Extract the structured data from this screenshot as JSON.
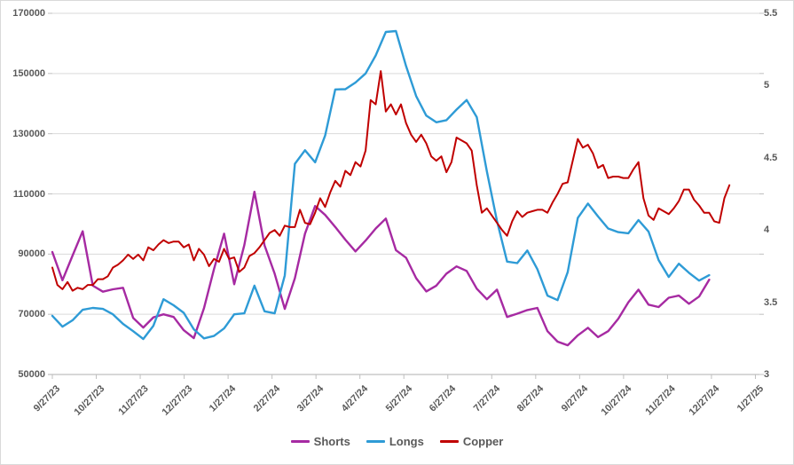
{
  "chart_data": {
    "type": "line",
    "title": "",
    "grid": "horizontal",
    "background_color": "#ffffff",
    "border_color": "#d9d9d9",
    "gridline_color": "#d9d9d9",
    "axis_line_color": "#bfbfbf",
    "tick_text_color": "#595959",
    "x_axis": {
      "tick_labels": [
        "9/27/23",
        "10/27/23",
        "11/27/23",
        "12/27/23",
        "1/27/24",
        "2/27/24",
        "3/27/24",
        "4/27/24",
        "5/27/24",
        "6/27/24",
        "7/27/24",
        "8/27/24",
        "9/27/24",
        "10/27/24",
        "11/27/24",
        "12/27/24",
        "1/27/25"
      ],
      "label_rotation_deg": -45,
      "point_interval": "weekly"
    },
    "y_axis_left": {
      "range": [
        50000,
        170000
      ],
      "tick_step": 20000,
      "tick_labels": [
        "50000",
        "70000",
        "90000",
        "110000",
        "130000",
        "150000",
        "170000"
      ]
    },
    "y_axis_right": {
      "range": [
        3,
        5.5
      ],
      "tick_step": 0.5,
      "tick_labels": [
        "3",
        "3.5",
        "4",
        "4.5",
        "5",
        "5.5"
      ]
    },
    "legend": {
      "position": "bottom",
      "items": [
        "Shorts",
        "Longs",
        "Copper"
      ]
    },
    "series": [
      {
        "name": "Shorts",
        "color": "#a62aa2",
        "axis": "left",
        "points_per_week": 1,
        "values": [
          90700,
          81300,
          89500,
          97600,
          79500,
          77500,
          78300,
          78800,
          68800,
          65600,
          69000,
          70000,
          69100,
          64700,
          62100,
          72000,
          85000,
          96800,
          80000,
          93000,
          110700,
          92900,
          83500,
          71800,
          82000,
          96800,
          106000,
          103000,
          99000,
          94800,
          90900,
          94500,
          98500,
          101800,
          91300,
          88800,
          82000,
          77600,
          79500,
          83500,
          85900,
          84400,
          78500,
          75000,
          78200,
          69100,
          70200,
          71400,
          72100,
          64400,
          60900,
          59700,
          63000,
          65500,
          62400,
          64400,
          68500,
          74000,
          78200,
          73200,
          72400,
          75500,
          76200,
          73500,
          75900,
          81500
        ]
      },
      {
        "name": "Longs",
        "color": "#2e9bd6",
        "axis": "left",
        "points_per_week": 1,
        "values": [
          69500,
          65900,
          68000,
          71500,
          72100,
          71800,
          70000,
          66800,
          64400,
          61800,
          66200,
          75000,
          73000,
          70500,
          65000,
          62000,
          62800,
          65300,
          70000,
          70300,
          79500,
          71000,
          70300,
          82900,
          120000,
          124500,
          120500,
          129400,
          144700,
          144800,
          147000,
          150000,
          156000,
          163800,
          164100,
          152500,
          142500,
          136000,
          133800,
          134500,
          138000,
          141200,
          135500,
          117500,
          101000,
          87500,
          87000,
          91200,
          85000,
          76200,
          74700,
          84000,
          102000,
          106800,
          102500,
          98500,
          97300,
          96900,
          101300,
          97500,
          88000,
          82400,
          86800,
          83800,
          81200,
          83000
        ]
      },
      {
        "name": "Copper",
        "color": "#c00000",
        "axis": "right",
        "points_per_week": 2,
        "values": [
          3.74,
          3.62,
          3.59,
          3.64,
          3.58,
          3.6,
          3.59,
          3.62,
          3.62,
          3.66,
          3.66,
          3.68,
          3.74,
          3.76,
          3.79,
          3.83,
          3.8,
          3.83,
          3.79,
          3.88,
          3.86,
          3.9,
          3.93,
          3.91,
          3.92,
          3.92,
          3.88,
          3.9,
          3.79,
          3.87,
          3.83,
          3.75,
          3.8,
          3.78,
          3.87,
          3.8,
          3.81,
          3.71,
          3.74,
          3.82,
          3.84,
          3.88,
          3.93,
          3.98,
          4.0,
          3.96,
          4.03,
          4.02,
          4.02,
          4.14,
          4.05,
          4.04,
          4.12,
          4.22,
          4.16,
          4.26,
          4.34,
          4.3,
          4.41,
          4.38,
          4.47,
          4.44,
          4.55,
          4.9,
          4.87,
          5.1,
          4.82,
          4.87,
          4.8,
          4.87,
          4.74,
          4.66,
          4.61,
          4.66,
          4.6,
          4.51,
          4.48,
          4.51,
          4.4,
          4.47,
          4.64,
          4.62,
          4.6,
          4.55,
          4.31,
          4.12,
          4.15,
          4.1,
          4.05,
          4.0,
          3.96,
          4.06,
          4.13,
          4.09,
          4.12,
          4.13,
          4.14,
          4.14,
          4.12,
          4.19,
          4.25,
          4.32,
          4.33,
          4.48,
          4.63,
          4.57,
          4.59,
          4.53,
          4.43,
          4.45,
          4.36,
          4.37,
          4.37,
          4.36,
          4.36,
          4.42,
          4.47,
          4.22,
          4.1,
          4.07,
          4.15,
          4.13,
          4.11,
          4.15,
          4.2,
          4.28,
          4.28,
          4.21,
          4.17,
          4.12,
          4.12,
          4.06,
          4.05,
          4.22,
          4.31
        ]
      }
    ]
  }
}
